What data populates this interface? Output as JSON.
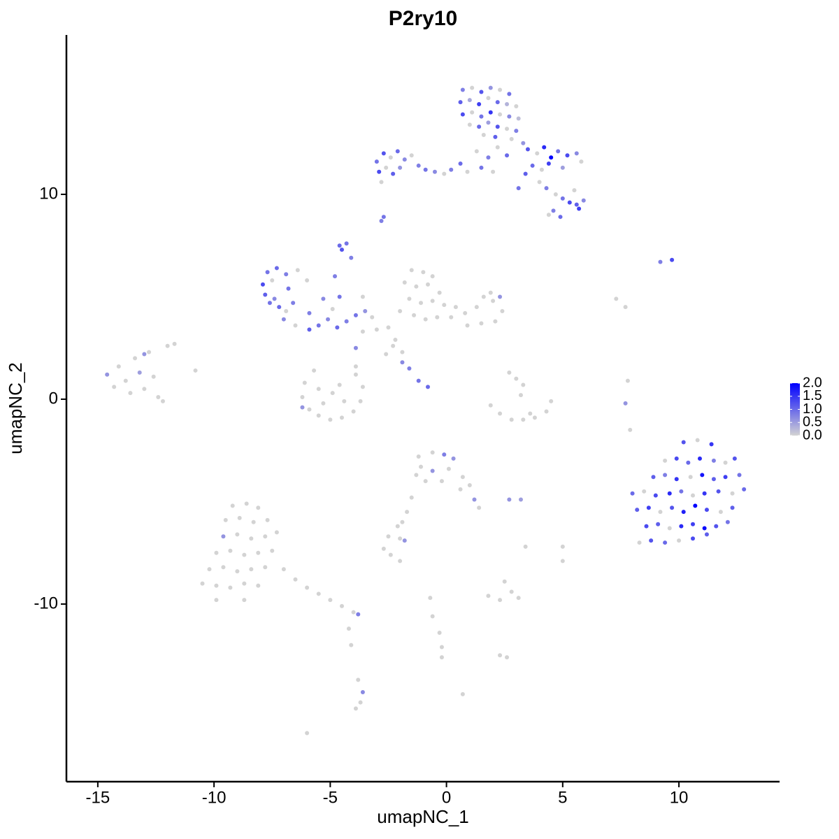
{
  "chart_data": {
    "type": "scatter",
    "title": "P2ry10",
    "x_label": "umapNC_1",
    "y_label": "umapNC_2",
    "xlim": [
      -16.35,
      14.33
    ],
    "ylim": [
      -18.67,
      17.78
    ],
    "xticks": [
      -15,
      -10,
      -5,
      0,
      5,
      10
    ],
    "yticks": [
      -10,
      0,
      10
    ],
    "low_color": "#d3d3d3",
    "high_color": "#0000ff",
    "legend_ticks": [
      {
        "value": 2.0,
        "label": "2.0"
      },
      {
        "value": 1.5,
        "label": "1.5"
      },
      {
        "value": 1.0,
        "label": "1.0"
      },
      {
        "value": 0.5,
        "label": "0.5"
      },
      {
        "value": 0,
        "label": "0.0"
      }
    ],
    "x": [
      0.7,
      1.1,
      1.5,
      1.9,
      2.3,
      2.7,
      0.6,
      1.0,
      1.4,
      1.8,
      2.2,
      2.6,
      3.0,
      0.7,
      1.1,
      1.5,
      1.9,
      2.3,
      2.7,
      3.1,
      1.0,
      1.4,
      1.8,
      2.2,
      2.6,
      3.0,
      1.6,
      2.1,
      2.8,
      3.3,
      3.5,
      3.9,
      4.2,
      4.5,
      4.8,
      5.2,
      5.6,
      5.8,
      3.7,
      4.1,
      4.4,
      5.0,
      3.4,
      4.0,
      4.3,
      3.1,
      4.7,
      5.0,
      5.3,
      5.6,
      5.9,
      5.5,
      4.6,
      4.9,
      4.4,
      5.7,
      -3.0,
      -2.7,
      -2.4,
      -2.1,
      -1.8,
      -1.5,
      -1.2,
      -2.9,
      -2.6,
      -2.3,
      -2.0,
      -0.9,
      -0.5,
      -0.1,
      0.2,
      0.6,
      0.9,
      -2.8,
      1.3,
      1.8,
      2.2,
      2.6,
      1.5,
      2.0,
      -2.8,
      -2.7,
      -4.6,
      -4.5,
      -4.3,
      -4.1,
      9.2,
      9.7,
      -7.7,
      -7.3,
      -6.9,
      -7.9,
      -7.5,
      -6.8,
      -7.8,
      -7.4,
      -7.2,
      -6.9,
      -6.6,
      -7.6,
      -6.4,
      -6.0,
      -7.0,
      -6.5,
      -5.9,
      -5.5,
      -5.1,
      -4.7,
      -4.3,
      -3.9,
      -3.5,
      -3.2,
      -5.3,
      -5.9,
      -4.9,
      -3.6,
      -4.8,
      -4.6,
      -3.6,
      -3.9,
      -1.9,
      -1.6,
      -1.2,
      -0.8,
      -1.9,
      -2.3,
      -2.6,
      -1.5,
      -1.0,
      -0.6,
      -1.8,
      -1.3,
      -0.8,
      -0.3,
      -1.6,
      -1.1,
      -0.6,
      -0.1,
      0.4,
      -2.0,
      -1.4,
      -0.9,
      -0.4,
      0.2,
      0.8,
      1.3,
      1.6,
      2.0,
      2.4,
      2.1,
      1.5,
      0.9,
      1.9,
      2.3,
      -2.5,
      -3.0,
      -2.2,
      -6.1,
      -6.2,
      -5.9,
      -5.5,
      -5.0,
      -4.5,
      -4.0,
      -3.7,
      -3.6,
      -3.9,
      -5.7,
      -4.9,
      -5.3,
      -4.4,
      -4.6,
      -5.5,
      -6.2,
      -3.9,
      1.9,
      2.3,
      2.8,
      3.3,
      3.8,
      4.3,
      4.5,
      3.6,
      3.0,
      3.3,
      2.7,
      3.2,
      7.8,
      7.7,
      7.9,
      7.3,
      7.7,
      -14.6,
      -14.3,
      -14.1,
      -13.8,
      -13.6,
      -13.4,
      -13.2,
      -13.0,
      -12.8,
      -12.6,
      -12.4,
      -12.2,
      -13.0,
      -12.0,
      -11.7,
      -10.8,
      10.2,
      10.8,
      11.4,
      9.4,
      9.9,
      10.4,
      10.9,
      11.5,
      12.0,
      12.4,
      8.9,
      9.4,
      9.9,
      10.5,
      11.0,
      11.5,
      12.0,
      12.6,
      8.0,
      8.5,
      9.0,
      9.6,
      10.1,
      10.6,
      11.1,
      11.7,
      12.3,
      12.8,
      8.2,
      8.7,
      9.2,
      9.7,
      10.2,
      10.7,
      11.2,
      11.8,
      12.3,
      8.6,
      9.1,
      9.6,
      10.1,
      10.6,
      11.1,
      11.6,
      12.1,
      8.3,
      8.8,
      9.4,
      10.0,
      10.6,
      11.2,
      -1.2,
      -0.6,
      -0.1,
      0.3,
      -1.1,
      -0.6,
      0.1,
      0.7,
      1.0,
      0.6,
      -0.2,
      -0.9,
      -1.3,
      1.2,
      1.4,
      -1.5,
      -1.7,
      -1.9,
      -2.1,
      2.7,
      3.2,
      -2.5,
      -2.0,
      -1.8,
      -2.7,
      -9.2,
      -8.6,
      -8.1,
      -9.5,
      -8.9,
      -8.3,
      -7.7,
      -9.6,
      -9.0,
      -8.4,
      -7.8,
      -7.3,
      -9.9,
      -9.3,
      -8.7,
      -8.1,
      -7.5,
      -10.2,
      -9.6,
      -9.0,
      -8.4,
      -7.8,
      -10.5,
      -9.9,
      -9.3,
      -8.7,
      -8.1,
      -9.9,
      -8.7,
      -7.0,
      -6.5,
      -6.0,
      -5.5,
      -5.0,
      -4.5,
      -4.0,
      -3.8,
      -4.2,
      -4.1,
      -3.8,
      -3.6,
      -3.7,
      -3.9,
      -6.0,
      1.8,
      2.3,
      2.8,
      3.1,
      2.5,
      2.3,
      2.6,
      0.7,
      -0.7,
      -0.6,
      -0.3,
      -0.2,
      -0.2,
      -2.0,
      -2.4,
      3.4,
      5.0,
      5.0
    ],
    "y": [
      15.1,
      15.2,
      15.0,
      15.2,
      15.1,
      14.9,
      14.5,
      14.6,
      14.4,
      14.7,
      14.5,
      14.4,
      14.3,
      13.9,
      14.0,
      13.8,
      14.0,
      13.9,
      13.8,
      13.7,
      13.4,
      13.3,
      13.5,
      13.3,
      13.2,
      13.1,
      12.9,
      12.8,
      12.7,
      12.5,
      12.2,
      12.0,
      12.3,
      11.8,
      12.1,
      11.9,
      12.0,
      11.6,
      11.4,
      11.2,
      11.5,
      11.3,
      11.0,
      10.6,
      10.3,
      10.3,
      10.0,
      9.8,
      9.6,
      9.5,
      9.7,
      10.2,
      9.2,
      8.9,
      9.0,
      9.3,
      11.6,
      12.0,
      11.8,
      12.1,
      11.7,
      11.9,
      11.4,
      11.1,
      11.3,
      11.0,
      11.3,
      11.2,
      11.1,
      11.0,
      11.2,
      11.5,
      11.1,
      10.6,
      12.1,
      11.8,
      12.3,
      11.9,
      11.3,
      11.1,
      8.7,
      8.9,
      7.5,
      7.3,
      7.6,
      6.9,
      6.7,
      6.8,
      6.2,
      6.4,
      6.1,
      5.6,
      5.8,
      5.4,
      5.1,
      4.9,
      4.5,
      4.3,
      4.7,
      4.7,
      6.3,
      5.8,
      3.9,
      3.6,
      4.2,
      3.6,
      3.9,
      3.5,
      3.8,
      4.1,
      4.3,
      4.0,
      4.9,
      3.4,
      4.4,
      3.3,
      6.0,
      5.0,
      5.0,
      2.5,
      1.8,
      1.5,
      0.9,
      0.6,
      2.3,
      2.6,
      2.2,
      6.3,
      6.2,
      6.0,
      5.7,
      5.5,
      5.6,
      5.2,
      4.9,
      4.7,
      4.8,
      4.6,
      4.5,
      4.3,
      4.1,
      3.9,
      4.0,
      4.0,
      4.2,
      4.5,
      5.0,
      4.8,
      4.3,
      3.8,
      3.7,
      3.6,
      5.2,
      5.0,
      3.5,
      3.4,
      2.9,
      0.8,
      0.1,
      -0.5,
      -0.8,
      -1.0,
      -0.9,
      -0.6,
      -0.1,
      0.6,
      1.2,
      1.4,
      0.3,
      -0.2,
      -0.1,
      0.7,
      0.5,
      -0.4,
      1.6,
      -0.3,
      -0.7,
      -1.0,
      -1.0,
      -0.9,
      -0.6,
      -0.1,
      -0.7,
      1.0,
      0.7,
      1.3,
      0.2,
      0.9,
      -0.2,
      -1.5,
      4.9,
      4.5,
      1.2,
      0.6,
      1.6,
      0.9,
      0.3,
      2.0,
      1.3,
      0.5,
      2.3,
      1.1,
      0.1,
      -0.1,
      2.2,
      2.6,
      2.7,
      1.4,
      -2.1,
      -2.0,
      -2.2,
      -3.0,
      -2.9,
      -3.1,
      -2.9,
      -3.0,
      -3.1,
      -2.9,
      -3.8,
      -3.7,
      -3.9,
      -3.8,
      -3.7,
      -3.9,
      -3.8,
      -3.7,
      -4.6,
      -4.5,
      -4.7,
      -4.6,
      -4.5,
      -4.7,
      -4.6,
      -4.5,
      -4.6,
      -4.4,
      -5.4,
      -5.3,
      -5.5,
      -5.3,
      -5.5,
      -5.2,
      -5.4,
      -5.5,
      -5.3,
      -6.2,
      -6.1,
      -6.3,
      -6.2,
      -6.1,
      -6.3,
      -6.2,
      -6.0,
      -7.0,
      -6.9,
      -7.0,
      -6.9,
      -6.8,
      -6.6,
      -2.8,
      -2.6,
      -2.7,
      -2.9,
      -3.3,
      -3.5,
      -3.4,
      -3.8,
      -4.2,
      -4.4,
      -4.0,
      -4.0,
      -3.7,
      -4.9,
      -5.3,
      -4.8,
      -5.5,
      -6.0,
      -6.2,
      -4.9,
      -4.9,
      -6.7,
      -6.8,
      -6.9,
      -7.3,
      -5.2,
      -5.1,
      -5.3,
      -5.9,
      -5.8,
      -6.0,
      -5.9,
      -6.7,
      -6.6,
      -6.8,
      -6.7,
      -6.5,
      -7.5,
      -7.4,
      -7.6,
      -7.5,
      -7.4,
      -8.3,
      -8.2,
      -8.4,
      -8.3,
      -8.2,
      -9.0,
      -9.1,
      -9.2,
      -9.0,
      -9.1,
      -9.8,
      -9.8,
      -8.3,
      -8.8,
      -9.2,
      -9.5,
      -9.8,
      -10.1,
      -10.4,
      -10.5,
      -11.2,
      -12.0,
      -13.7,
      -14.3,
      -14.8,
      -15.1,
      -16.3,
      -9.6,
      -9.8,
      -9.4,
      -9.7,
      -8.9,
      -12.5,
      -12.6,
      -14.4,
      -9.7,
      -10.6,
      -11.4,
      -12.1,
      -12.6,
      -7.9,
      -7.6,
      -7.2,
      -7.2,
      -7.9
    ],
    "values": [
      0.8,
      0,
      1.2,
      0.6,
      0,
      0.9,
      1.1,
      0.4,
      1.4,
      0,
      1.0,
      0.3,
      0,
      1.3,
      0,
      0.9,
      1.5,
      0,
      0.7,
      0.2,
      0,
      1.0,
      0.5,
      1.2,
      0,
      0.8,
      0,
      1.1,
      0,
      0.6,
      1.2,
      0,
      1.6,
      2.0,
      0.9,
      1.3,
      0.7,
      0,
      1.0,
      0,
      1.4,
      0.5,
      1.1,
      0,
      0.8,
      0.9,
      0,
      0.9,
      1.3,
      1.1,
      0.7,
      0,
      0.8,
      1.0,
      0,
      1.4,
      0.9,
      1.2,
      0,
      1.0,
      0.7,
      0,
      0.8,
      1.3,
      0,
      1.1,
      0.6,
      0.9,
      0.7,
      0,
      0.8,
      1.0,
      0,
      0,
      0,
      0.8,
      0,
      1.0,
      0.9,
      0,
      0.8,
      0.9,
      1.0,
      1.2,
      0.9,
      0.8,
      0.8,
      1.3,
      0.9,
      1.0,
      0.8,
      1.3,
      0,
      0.9,
      1.1,
      0.7,
      1.0,
      0,
      0.8,
      0.9,
      0,
      0,
      0.7,
      0,
      0.8,
      0.9,
      0.7,
      1.0,
      0.8,
      0.9,
      0.6,
      0,
      0.7,
      1.1,
      0,
      0,
      0.8,
      0.9,
      0,
      0.7,
      0.7,
      0.8,
      0.9,
      1.0,
      0,
      0,
      0,
      0,
      0,
      0,
      0,
      0,
      0,
      0,
      0,
      0,
      0,
      0,
      0,
      0,
      0,
      0,
      0,
      0,
      0,
      0,
      0,
      0,
      0,
      0,
      0,
      0,
      0,
      0.6,
      0,
      0,
      0,
      0,
      0,
      0,
      0,
      0,
      0,
      0,
      0,
      0,
      0,
      0,
      0,
      0,
      0,
      0,
      0,
      0.6,
      0,
      0,
      0,
      0,
      0,
      0,
      0,
      0,
      0,
      0,
      0,
      0,
      0,
      0,
      0.6,
      0,
      0,
      0,
      0.6,
      0,
      0,
      0,
      0,
      0,
      0.5,
      0,
      0,
      0,
      0,
      0,
      0.6,
      0,
      0,
      0,
      1.2,
      0,
      1.5,
      0,
      1.3,
      1.0,
      1.6,
      0.8,
      0,
      1.2,
      1.1,
      0.8,
      1.5,
      0,
      1.8,
      1.1,
      1.4,
      0.9,
      1.0,
      0,
      1.3,
      1.6,
      0.9,
      0,
      1.5,
      1.2,
      0,
      1.0,
      1.1,
      1.4,
      0,
      1.2,
      1.7,
      2.0,
      1.3,
      0,
      1.1,
      1.3,
      1.1,
      0,
      1.6,
      1.4,
      1.9,
      1.2,
      0.9,
      0,
      1.2,
      1.0,
      0,
      1.3,
      1.1,
      0,
      0,
      0.8,
      0.6,
      0,
      0.6,
      0,
      0,
      0,
      0,
      0,
      0,
      0,
      0.6,
      0,
      0,
      0,
      0,
      0,
      0.6,
      0.5,
      0,
      0,
      0.6,
      0,
      0,
      0,
      0,
      0,
      0,
      0,
      0,
      0.6,
      0,
      0,
      0,
      0,
      0,
      0,
      0,
      0,
      0,
      0,
      0,
      0,
      0,
      0,
      0,
      0,
      0,
      0,
      0,
      0,
      0,
      0,
      0,
      0,
      0,
      0,
      0,
      0,
      0.8,
      0,
      0,
      0,
      0.7,
      0,
      0,
      0,
      0,
      0,
      0,
      0,
      0,
      0,
      0,
      0,
      0,
      0,
      0,
      0,
      0,
      0,
      0,
      0,
      0,
      0
    ]
  }
}
